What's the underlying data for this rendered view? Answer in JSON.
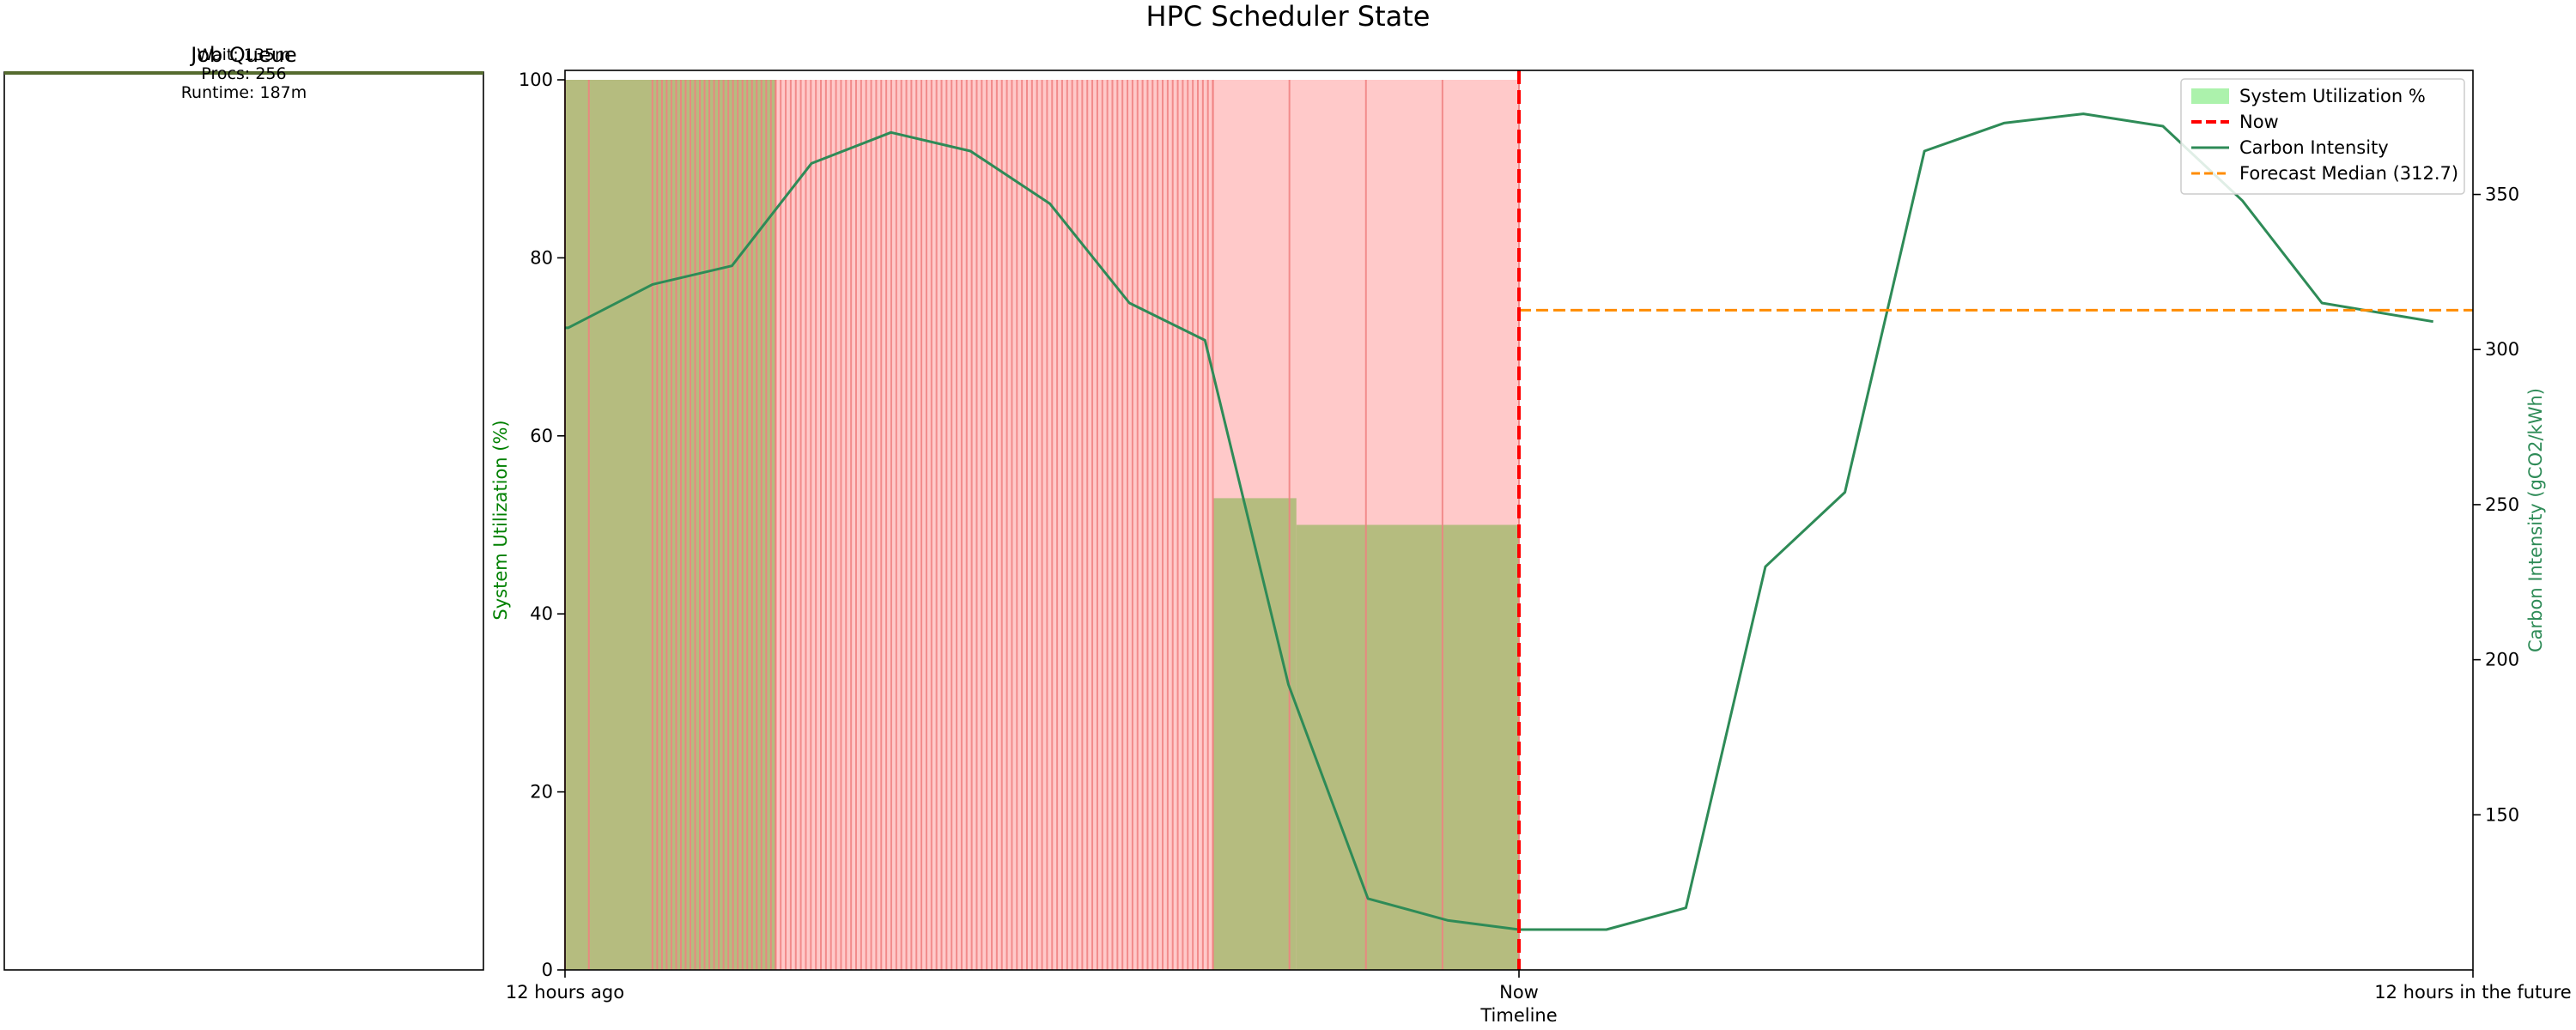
{
  "figure": {
    "title": "HPC Scheduler State"
  },
  "queue_panel": {
    "title": "Job Queue",
    "overlap_title": "Wait: 135m",
    "job_procs": "Procs: 256",
    "job_runtime": "Runtime: 187m"
  },
  "chart_data": {
    "type": "line",
    "title": "HPC Scheduler State",
    "xlabel": "Timeline",
    "ylabel_left": "System Utilization (%)",
    "ylabel_right": "Carbon Intensity (gCO2/kWh)",
    "x_tick_labels": [
      "12 hours ago",
      "Now",
      "12 hours in the future"
    ],
    "x_range_hours": [
      -12,
      12
    ],
    "ylim_left": [
      0,
      100
    ],
    "ylim_right": [
      100,
      390
    ],
    "yticks_left": [
      "0",
      "20",
      "40",
      "60",
      "80",
      "100"
    ],
    "yticks_right": [
      "150",
      "200",
      "250",
      "300",
      "350"
    ],
    "legend": {
      "position": "top-right",
      "entries": [
        "System Utilization %",
        "Now",
        "Carbon Intensity",
        "Forecast Median (312.7)"
      ]
    },
    "utilization_segments": [
      {
        "start": -12.0,
        "end": -10.9,
        "value": 100
      },
      {
        "start": -10.9,
        "end": -9.35,
        "value": 100
      },
      {
        "start": -9.35,
        "end": -3.85,
        "value": 0
      },
      {
        "start": -3.85,
        "end": -2.8,
        "value": 53
      },
      {
        "start": -2.8,
        "end": 0.0,
        "value": 50
      }
    ],
    "job_event_ranges": [
      {
        "start": -12.0,
        "end": -11.7,
        "count": 2
      },
      {
        "start": -10.9,
        "end": -9.35,
        "count": 27
      },
      {
        "start": -9.35,
        "end": -3.85,
        "count": 88
      },
      {
        "start": -3.85,
        "end": 0.0,
        "count": 5
      }
    ],
    "series": [
      {
        "name": "Carbon Intensity",
        "color": "#2e8b57",
        "x": [
          -12,
          -11.96,
          -10.9,
          -9.9,
          -8.9,
          -7.9,
          -6.9,
          -5.9,
          -4.9,
          -3.95,
          -2.9,
          -1.9,
          -0.9,
          0.0,
          1.1,
          2.1,
          3.1,
          4.1,
          5.1,
          6.1,
          7.1,
          8.1,
          9.1,
          10.1,
          11.5
        ],
        "values": [
          307,
          307,
          321,
          327,
          360,
          370,
          364,
          347,
          315,
          303,
          192,
          123,
          116,
          113,
          113,
          120,
          230,
          254,
          364,
          373,
          376,
          372,
          348,
          315,
          309
        ]
      }
    ],
    "forecast_median": 312.7,
    "now_x": 0,
    "colors": {
      "utilization_fill": "#b5bc7f",
      "idle_fill": "#ffc9c9",
      "job_line": "#f08080",
      "now_line": "#ff0000",
      "carbon_line": "#2e8b57",
      "forecast_line": "#ff8c00",
      "left_axis_label": "#008000",
      "right_axis_label": "#2e8b57"
    },
    "grid": false
  }
}
